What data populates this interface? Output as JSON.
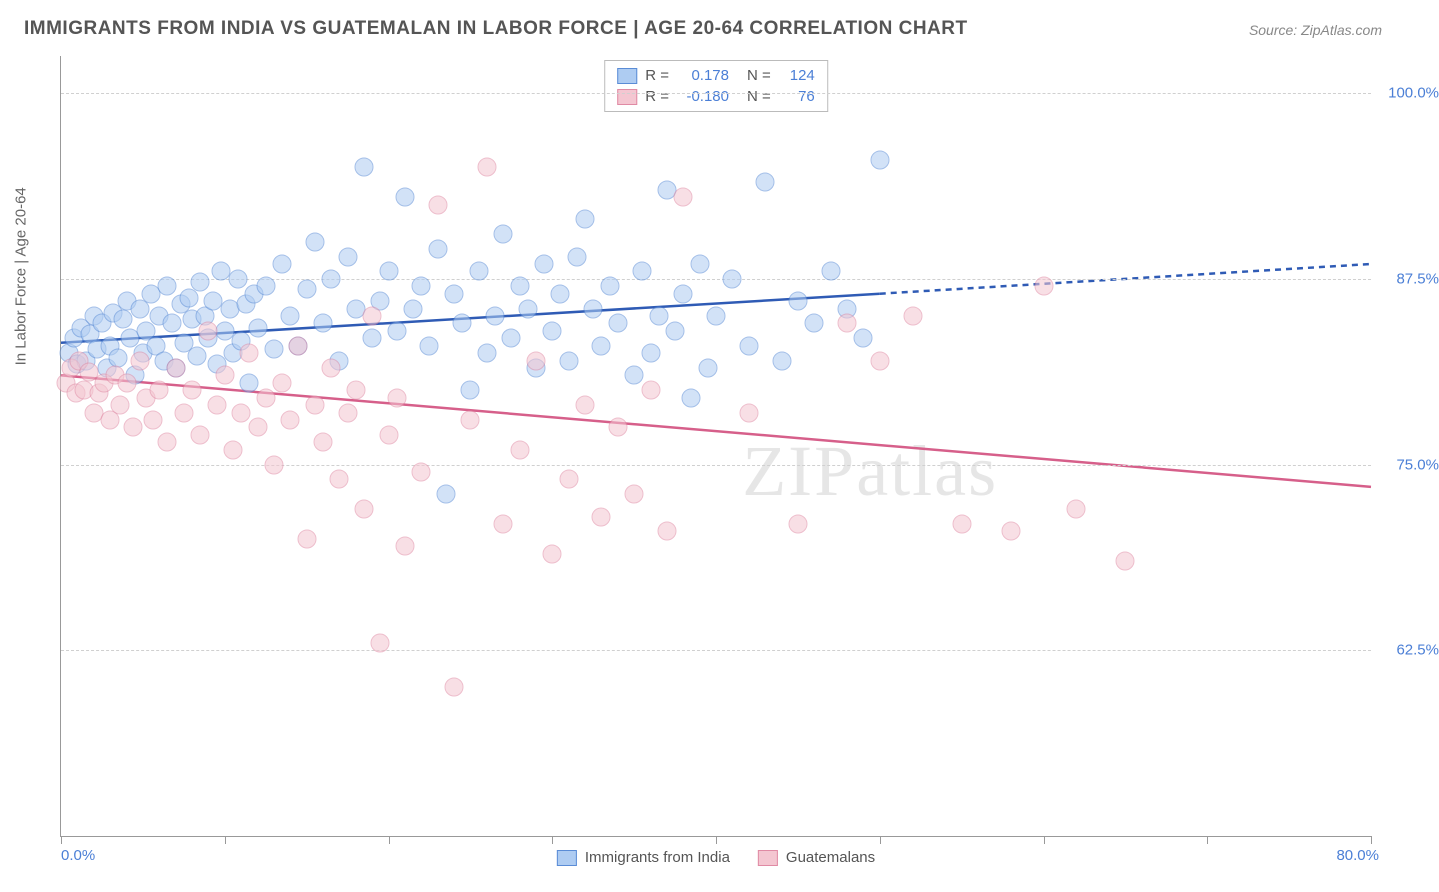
{
  "title": "IMMIGRANTS FROM INDIA VS GUATEMALAN IN LABOR FORCE | AGE 20-64 CORRELATION CHART",
  "source": "Source: ZipAtlas.com",
  "watermark": "ZIPatlas",
  "chart": {
    "type": "scatter",
    "x_axis": {
      "min": 0,
      "max": 80,
      "ticks": [
        0,
        10,
        20,
        30,
        40,
        50,
        60,
        70,
        80
      ],
      "label_left": "0.0%",
      "label_right": "80.0%"
    },
    "y_axis": {
      "min": 50,
      "max": 102.5,
      "title": "In Labor Force | Age 20-64",
      "gridlines": [
        {
          "value": 62.5,
          "label": "62.5%"
        },
        {
          "value": 75.0,
          "label": "75.0%"
        },
        {
          "value": 87.5,
          "label": "87.5%"
        },
        {
          "value": 100.0,
          "label": "100.0%"
        }
      ]
    },
    "legend_top": [
      {
        "color_fill": "#aeccf2",
        "color_border": "#5a8cd6",
        "r_label": "R =",
        "r_value": "0.178",
        "n_label": "N =",
        "n_value": "124",
        "r_color": "#4b7fd6"
      },
      {
        "color_fill": "#f4c6d1",
        "color_border": "#e08aa4",
        "r_label": "R =",
        "r_value": "-0.180",
        "n_label": "N =",
        "n_value": "76",
        "r_color": "#4b7fd6"
      }
    ],
    "legend_bottom": [
      {
        "color_fill": "#aeccf2",
        "color_border": "#5a8cd6",
        "label": "Immigrants from India"
      },
      {
        "color_fill": "#f4c6d1",
        "color_border": "#e08aa4",
        "label": "Guatemalans"
      }
    ],
    "series": [
      {
        "name": "india",
        "fill": "#aeccf2",
        "stroke": "#5a8cd6",
        "trend": {
          "x1": 0,
          "y1": 83.2,
          "x2": 50,
          "y2": 86.5,
          "dash_x2": 80,
          "dash_y2": 88.5,
          "color": "#2f5bb5",
          "width": 2.5
        },
        "points": [
          [
            0.5,
            82.5
          ],
          [
            0.8,
            83.5
          ],
          [
            1.0,
            81.8
          ],
          [
            1.2,
            84.2
          ],
          [
            1.5,
            82.0
          ],
          [
            1.8,
            83.8
          ],
          [
            2.0,
            85.0
          ],
          [
            2.2,
            82.8
          ],
          [
            2.5,
            84.5
          ],
          [
            2.8,
            81.5
          ],
          [
            3.0,
            83.0
          ],
          [
            3.2,
            85.2
          ],
          [
            3.5,
            82.2
          ],
          [
            3.8,
            84.8
          ],
          [
            4.0,
            86.0
          ],
          [
            4.2,
            83.5
          ],
          [
            4.5,
            81.0
          ],
          [
            4.8,
            85.5
          ],
          [
            5.0,
            82.5
          ],
          [
            5.2,
            84.0
          ],
          [
            5.5,
            86.5
          ],
          [
            5.8,
            83.0
          ],
          [
            6.0,
            85.0
          ],
          [
            6.3,
            82.0
          ],
          [
            6.5,
            87.0
          ],
          [
            6.8,
            84.5
          ],
          [
            7.0,
            81.5
          ],
          [
            7.3,
            85.8
          ],
          [
            7.5,
            83.2
          ],
          [
            7.8,
            86.2
          ],
          [
            8.0,
            84.8
          ],
          [
            8.3,
            82.3
          ],
          [
            8.5,
            87.3
          ],
          [
            8.8,
            85.0
          ],
          [
            9.0,
            83.5
          ],
          [
            9.3,
            86.0
          ],
          [
            9.5,
            81.8
          ],
          [
            9.8,
            88.0
          ],
          [
            10.0,
            84.0
          ],
          [
            10.3,
            85.5
          ],
          [
            10.5,
            82.5
          ],
          [
            10.8,
            87.5
          ],
          [
            11.0,
            83.3
          ],
          [
            11.3,
            85.8
          ],
          [
            11.5,
            80.5
          ],
          [
            11.8,
            86.5
          ],
          [
            12.0,
            84.2
          ],
          [
            12.5,
            87.0
          ],
          [
            13.0,
            82.8
          ],
          [
            13.5,
            88.5
          ],
          [
            14.0,
            85.0
          ],
          [
            14.5,
            83.0
          ],
          [
            15.0,
            86.8
          ],
          [
            15.5,
            90.0
          ],
          [
            16.0,
            84.5
          ],
          [
            16.5,
            87.5
          ],
          [
            17.0,
            82.0
          ],
          [
            17.5,
            89.0
          ],
          [
            18.0,
            85.5
          ],
          [
            18.5,
            95.0
          ],
          [
            19.0,
            83.5
          ],
          [
            19.5,
            86.0
          ],
          [
            20.0,
            88.0
          ],
          [
            20.5,
            84.0
          ],
          [
            21.0,
            93.0
          ],
          [
            21.5,
            85.5
          ],
          [
            22.0,
            87.0
          ],
          [
            22.5,
            83.0
          ],
          [
            23.0,
            89.5
          ],
          [
            23.5,
            73.0
          ],
          [
            24.0,
            86.5
          ],
          [
            24.5,
            84.5
          ],
          [
            25.0,
            80.0
          ],
          [
            25.5,
            88.0
          ],
          [
            26.0,
            82.5
          ],
          [
            26.5,
            85.0
          ],
          [
            27.0,
            90.5
          ],
          [
            27.5,
            83.5
          ],
          [
            28.0,
            87.0
          ],
          [
            28.5,
            85.5
          ],
          [
            29.0,
            81.5
          ],
          [
            29.5,
            88.5
          ],
          [
            30.0,
            84.0
          ],
          [
            30.5,
            86.5
          ],
          [
            31.0,
            82.0
          ],
          [
            31.5,
            89.0
          ],
          [
            32.0,
            91.5
          ],
          [
            32.5,
            85.5
          ],
          [
            33.0,
            83.0
          ],
          [
            33.5,
            87.0
          ],
          [
            34.0,
            84.5
          ],
          [
            35.0,
            81.0
          ],
          [
            35.5,
            88.0
          ],
          [
            36.0,
            82.5
          ],
          [
            36.5,
            85.0
          ],
          [
            37.0,
            93.5
          ],
          [
            37.5,
            84.0
          ],
          [
            38.0,
            86.5
          ],
          [
            38.5,
            79.5
          ],
          [
            39.0,
            88.5
          ],
          [
            39.5,
            81.5
          ],
          [
            40.0,
            85.0
          ],
          [
            41.0,
            87.5
          ],
          [
            42.0,
            83.0
          ],
          [
            43.0,
            94.0
          ],
          [
            44.0,
            82.0
          ],
          [
            45.0,
            86.0
          ],
          [
            46.0,
            84.5
          ],
          [
            47.0,
            88.0
          ],
          [
            48.0,
            85.5
          ],
          [
            49.0,
            83.5
          ],
          [
            50.0,
            95.5
          ]
        ]
      },
      {
        "name": "guatemalan",
        "fill": "#f4c6d1",
        "stroke": "#e08aa4",
        "trend": {
          "x1": 0,
          "y1": 81.0,
          "x2": 80,
          "y2": 73.5,
          "color": "#d65f8a",
          "width": 2.5
        },
        "points": [
          [
            0.3,
            80.5
          ],
          [
            0.6,
            81.5
          ],
          [
            0.9,
            79.8
          ],
          [
            1.1,
            82.0
          ],
          [
            1.4,
            80.0
          ],
          [
            1.7,
            81.2
          ],
          [
            2.0,
            78.5
          ],
          [
            2.3,
            79.8
          ],
          [
            2.6,
            80.5
          ],
          [
            3.0,
            78.0
          ],
          [
            3.3,
            81.0
          ],
          [
            3.6,
            79.0
          ],
          [
            4.0,
            80.5
          ],
          [
            4.4,
            77.5
          ],
          [
            4.8,
            82.0
          ],
          [
            5.2,
            79.5
          ],
          [
            5.6,
            78.0
          ],
          [
            6.0,
            80.0
          ],
          [
            6.5,
            76.5
          ],
          [
            7.0,
            81.5
          ],
          [
            7.5,
            78.5
          ],
          [
            8.0,
            80.0
          ],
          [
            8.5,
            77.0
          ],
          [
            9.0,
            84.0
          ],
          [
            9.5,
            79.0
          ],
          [
            10.0,
            81.0
          ],
          [
            10.5,
            76.0
          ],
          [
            11.0,
            78.5
          ],
          [
            11.5,
            82.5
          ],
          [
            12.0,
            77.5
          ],
          [
            12.5,
            79.5
          ],
          [
            13.0,
            75.0
          ],
          [
            13.5,
            80.5
          ],
          [
            14.0,
            78.0
          ],
          [
            14.5,
            83.0
          ],
          [
            15.0,
            70.0
          ],
          [
            15.5,
            79.0
          ],
          [
            16.0,
            76.5
          ],
          [
            16.5,
            81.5
          ],
          [
            17.0,
            74.0
          ],
          [
            17.5,
            78.5
          ],
          [
            18.0,
            80.0
          ],
          [
            18.5,
            72.0
          ],
          [
            19.0,
            85.0
          ],
          [
            19.5,
            63.0
          ],
          [
            20.0,
            77.0
          ],
          [
            20.5,
            79.5
          ],
          [
            21.0,
            69.5
          ],
          [
            22.0,
            74.5
          ],
          [
            23.0,
            92.5
          ],
          [
            24.0,
            60.0
          ],
          [
            25.0,
            78.0
          ],
          [
            26.0,
            95.0
          ],
          [
            27.0,
            71.0
          ],
          [
            28.0,
            76.0
          ],
          [
            29.0,
            82.0
          ],
          [
            30.0,
            69.0
          ],
          [
            31.0,
            74.0
          ],
          [
            32.0,
            79.0
          ],
          [
            33.0,
            71.5
          ],
          [
            34.0,
            77.5
          ],
          [
            35.0,
            73.0
          ],
          [
            36.0,
            80.0
          ],
          [
            37.0,
            70.5
          ],
          [
            38.0,
            93.0
          ],
          [
            42.0,
            78.5
          ],
          [
            45.0,
            71.0
          ],
          [
            48.0,
            84.5
          ],
          [
            50.0,
            82.0
          ],
          [
            52.0,
            85.0
          ],
          [
            55.0,
            71.0
          ],
          [
            58.0,
            70.5
          ],
          [
            60.0,
            87.0
          ],
          [
            62.0,
            72.0
          ],
          [
            65.0,
            68.5
          ]
        ]
      }
    ]
  }
}
